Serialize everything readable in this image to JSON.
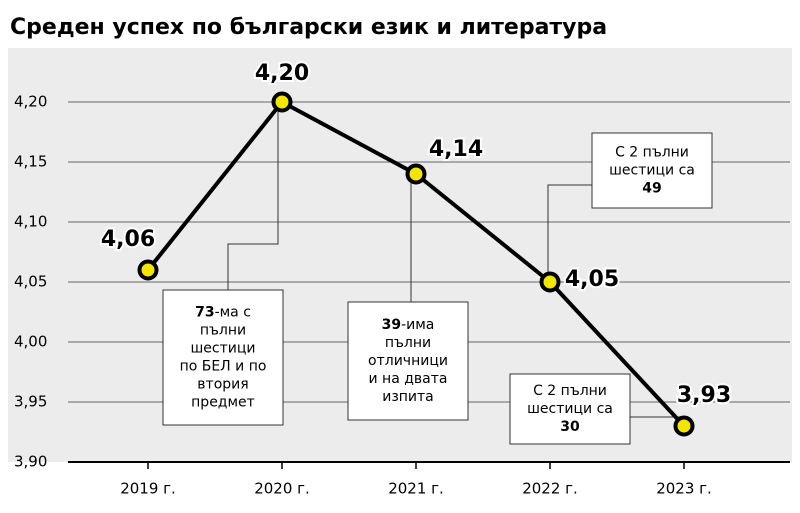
{
  "chart_data": {
    "type": "line",
    "title": "Среден успех по български език и литература",
    "categories": [
      "2019 г.",
      "2020 г.",
      "2021 г.",
      "2022 г.",
      "2023 г."
    ],
    "values": [
      4.06,
      4.2,
      4.14,
      4.05,
      3.93
    ],
    "value_labels": [
      "4,06",
      "4,20",
      "4,14",
      "4,05",
      "3,93"
    ],
    "color": "#000000",
    "marker_color": "#f2e600",
    "ylim": [
      3.9,
      4.245
    ],
    "yticks": [
      {
        "value": 3.9,
        "label": "3,90"
      },
      {
        "value": 3.95,
        "label": "3,95"
      },
      {
        "value": 4.0,
        "label": "4,00"
      },
      {
        "value": 4.05,
        "label": "4,05"
      },
      {
        "value": 4.1,
        "label": "4,10"
      },
      {
        "value": 4.15,
        "label": "4,15"
      },
      {
        "value": 4.2,
        "label": "4,20"
      }
    ],
    "grid": true,
    "annotations": [
      {
        "lines": [
          {
            "bold": "73",
            "text": "-ма с"
          },
          {
            "text": "пълни"
          },
          {
            "text": "шестици"
          },
          {
            "text": "по БЕЛ и по"
          },
          {
            "text": "втория"
          },
          {
            "text": "предмет"
          }
        ]
      },
      {
        "lines": [
          {
            "bold": "39",
            "text": "-има"
          },
          {
            "text": "пълни"
          },
          {
            "text": "отличници"
          },
          {
            "text": "и на двата"
          },
          {
            "text": "изпита"
          }
        ]
      },
      {
        "lines": [
          {
            "text": "С 2 пълни"
          },
          {
            "text": "шестици са"
          },
          {
            "bold": "49"
          }
        ]
      },
      {
        "lines": [
          {
            "text": "С 2 пълни"
          },
          {
            "text": "шестици са"
          },
          {
            "bold": "30"
          }
        ]
      }
    ]
  }
}
